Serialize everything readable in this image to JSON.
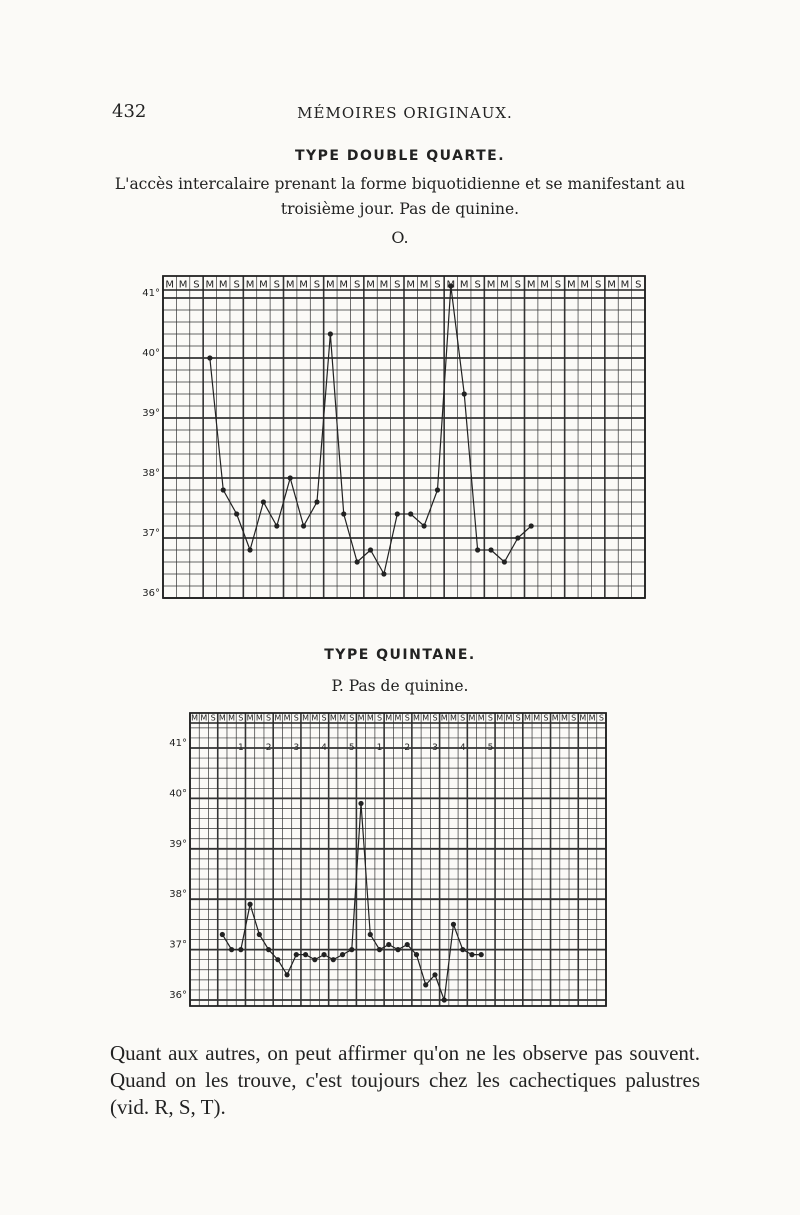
{
  "page": {
    "number": "432",
    "running_head": "MÉMOIRES ORIGINAUX.",
    "closing_paragraph": "Quant aux autres, on peut affirmer qu'on ne les observe pas souvent. Quand on les trouve, c'est toujours chez les cachectiques palustres (vid. R, S, T)."
  },
  "chart_data": [
    {
      "type": "line",
      "title": "TYPE DOUBLE QUARTE.",
      "caption": "L'accès intercalaire prenant la forme biquotidienne et se manifestant au troisième jour. Pas de quinine.",
      "label": "O.",
      "x_header": [
        "M",
        "M",
        "S",
        "M",
        "M",
        "S",
        "M",
        "M",
        "S",
        "M",
        "M",
        "S",
        "M",
        "M",
        "S",
        "M",
        "M",
        "S",
        "M",
        "M",
        "S",
        "M",
        "M",
        "S",
        "M",
        "M",
        "S",
        "M",
        "M",
        "S",
        "M",
        "M",
        "S",
        "M",
        "M",
        "S"
      ],
      "y_ticks": [
        "41°",
        "40°",
        "39°",
        "38°",
        "37°",
        "36°"
      ],
      "ylim": [
        36,
        41
      ],
      "grid": true,
      "points": [
        [
          3,
          40
        ],
        [
          4,
          37.8
        ],
        [
          5,
          37.4
        ],
        [
          6,
          36.8
        ],
        [
          7,
          37.6
        ],
        [
          8,
          37.2
        ],
        [
          9,
          38
        ],
        [
          10,
          37.2
        ],
        [
          11,
          37.6
        ],
        [
          12,
          40.4
        ],
        [
          13,
          37.4
        ],
        [
          14,
          36.6
        ],
        [
          15,
          36.8
        ],
        [
          16,
          36.4
        ],
        [
          17,
          37.4
        ],
        [
          18,
          37.4
        ],
        [
          19,
          37.2
        ],
        [
          20,
          37.8
        ],
        [
          21,
          41.2
        ],
        [
          22,
          39.4
        ],
        [
          23,
          36.8
        ],
        [
          24,
          36.8
        ],
        [
          25,
          36.6
        ],
        [
          26,
          37
        ],
        [
          27,
          37.2
        ]
      ]
    },
    {
      "type": "line",
      "title": "TYPE QUINTANE.",
      "caption": "P. Pas de quinine.",
      "x_header": [
        "M",
        "M",
        "S",
        "M",
        "M",
        "S",
        "M",
        "M",
        "S",
        "M",
        "M",
        "S",
        "M",
        "M",
        "S",
        "M",
        "M",
        "S",
        "M",
        "M",
        "S",
        "M",
        "M",
        "S",
        "M",
        "M",
        "S",
        "M",
        "M",
        "S",
        "M",
        "M",
        "S",
        "M",
        "M",
        "S",
        "M",
        "M",
        "S",
        "M",
        "M",
        "S",
        "M",
        "M",
        "S"
      ],
      "day_markers": [
        {
          "col": 5,
          "label": "1"
        },
        {
          "col": 8,
          "label": "2"
        },
        {
          "col": 11,
          "label": "3"
        },
        {
          "col": 14,
          "label": "4"
        },
        {
          "col": 17,
          "label": "5"
        },
        {
          "col": 20,
          "label": "1"
        },
        {
          "col": 23,
          "label": "2"
        },
        {
          "col": 26,
          "label": "3"
        },
        {
          "col": 29,
          "label": "4"
        },
        {
          "col": 32,
          "label": "5"
        }
      ],
      "y_ticks": [
        "41°",
        "40°",
        "39°",
        "38°",
        "37°",
        "36°"
      ],
      "ylim": [
        35.5,
        41.5
      ],
      "grid": true,
      "points": [
        [
          3,
          37.3
        ],
        [
          4,
          37
        ],
        [
          5,
          37
        ],
        [
          6,
          37.9
        ],
        [
          7,
          37.3
        ],
        [
          8,
          37
        ],
        [
          9,
          36.8
        ],
        [
          10,
          36.5
        ],
        [
          11,
          36.9
        ],
        [
          12,
          36.9
        ],
        [
          13,
          36.8
        ],
        [
          14,
          36.9
        ],
        [
          15,
          36.8
        ],
        [
          16,
          36.9
        ],
        [
          17,
          37
        ],
        [
          18,
          39.9
        ],
        [
          19,
          37.3
        ],
        [
          20,
          37
        ],
        [
          21,
          37.1
        ],
        [
          22,
          37
        ],
        [
          23,
          37.1
        ],
        [
          24,
          36.9
        ],
        [
          25,
          36.3
        ],
        [
          26,
          36.5
        ],
        [
          27,
          36
        ],
        [
          28,
          37.5
        ],
        [
          29,
          37
        ],
        [
          30,
          36.9
        ],
        [
          31,
          36.9
        ]
      ]
    }
  ]
}
